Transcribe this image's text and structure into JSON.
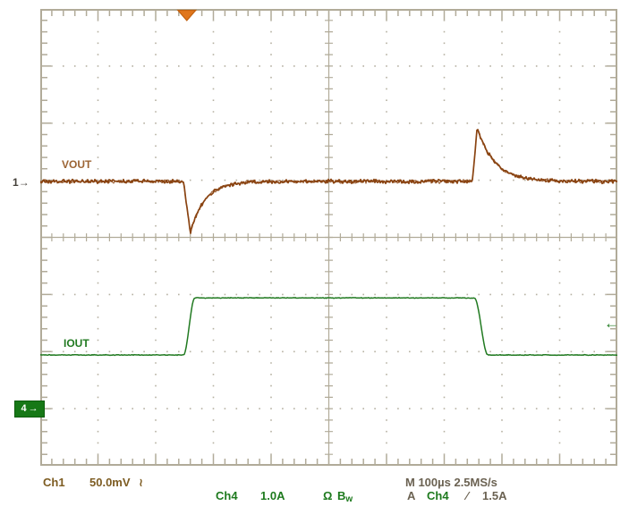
{
  "colors": {
    "background": "#ffffff",
    "graticule": "#b1ab99",
    "grid_dot": "#b6b1a2",
    "ch1_trace": "#8a4412",
    "ch1_label": "#9c6434",
    "ch1_text": "#7d5c22",
    "ch4_trace": "#217a21",
    "ch4_text": "#1e7a1e",
    "readout_dark": "#6b6252",
    "trigger_marker": "#e0761c",
    "trigger_marker_edge": "#c2610f",
    "ch4_box_bg": "#167816",
    "ch4_box_text": "#ffffff",
    "ch1_marker": "#45403a"
  },
  "labels": {
    "vout": "VOUT",
    "iout": "IOUT"
  },
  "markers": {
    "ch1_number": "1",
    "ch4_number": "4",
    "right_arrow": "→",
    "left_arrow": "←"
  },
  "readout": {
    "ch1_name": "Ch1",
    "ch1_scale": "50.0mV",
    "ch1_coupling_symbol": "≀",
    "ch4_name": "Ch4",
    "ch4_scale": "1.0A",
    "ch4_impedance_symbol": "Ω",
    "ch4_bw_main": "B",
    "ch4_bw_sub": "w",
    "timebase": "M 100µs 2.5MS/s",
    "trigger_mode": "A",
    "trigger_source": "Ch4",
    "trigger_slope_symbol": "∕",
    "trigger_level": "1.5A"
  },
  "chart_data": {
    "type": "line",
    "title": "Load transient response oscilloscope capture",
    "x_axis": {
      "scale_per_div": "100µs",
      "divisions": 10,
      "sample_rate": "2.5MS/s"
    },
    "y_divisions": 8,
    "grid": "dotted graticule, solid center axes with minor ticks every 0.2 div",
    "legend_position": "labels beside traces (VOUT upper, IOUT lower)",
    "trigger": {
      "source": "Ch4",
      "level": "1.5A",
      "slope": "rising",
      "position_div": 2.54,
      "level_arrow_div_from_top": 5.56
    },
    "series": [
      {
        "name": "VOUT",
        "channel": 1,
        "scale_per_div": "50.0mV",
        "coupling": "AC",
        "color": "#8a4412",
        "shape": {
          "baseline_div": 3.02,
          "noise_mV": 2.0,
          "dip": {
            "start_div": 2.48,
            "bottom_div": 2.6,
            "depth_mV": 45,
            "tau_div": 0.25
          },
          "spike": {
            "start_div": 7.49,
            "top_div": 7.57,
            "height_mV": 47,
            "tau_div": 0.3
          }
        },
        "summary": "flat at ~0mV, ~-45mV undershoot at load step-up (t=2.5div), ~+47mV overshoot at load step-down (t=7.5div)"
      },
      {
        "name": "IOUT",
        "channel": 4,
        "scale_per_div": "1.0A",
        "termination": "Ω",
        "bandwidth_limited": true,
        "color": "#217a21",
        "shape": {
          "ground_div": 7.0,
          "low_A": 0.94,
          "high_A": 1.94,
          "rise_start_div": 2.48,
          "rise_width_div": 0.2,
          "fall_start_div": 7.52,
          "fall_width_div": 0.24,
          "noise_A": 0.008
        },
        "summary": "current step from ~1A to ~2A at t=2.5div, back to ~1A at t=7.5div"
      }
    ]
  }
}
